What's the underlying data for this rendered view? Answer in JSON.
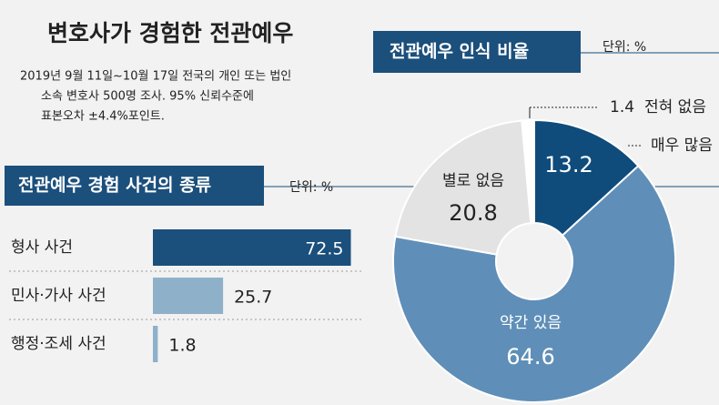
{
  "header": {
    "title": "변호사가 경험한 전관예우",
    "note": [
      "2019년 9월 11일~10월 17일 전국의 개인 또는 법인",
      "소속 변호사 500명 조사. 95% 신뢰수준에",
      "표본오차 ±4.4%포인트."
    ]
  },
  "chart_data": [
    {
      "type": "bar",
      "orientation": "horizontal",
      "title": "전관예우 경험 사건의 종류",
      "unit": "단위: %",
      "categories": [
        "형사 사건",
        "민사·가사 사건",
        "행정·조세 사건"
      ],
      "values": [
        72.5,
        25.7,
        1.8
      ],
      "colors": [
        "#1b4f7c",
        "#8fb0c9",
        "#8fb0c9"
      ]
    },
    {
      "type": "donut",
      "title": "전관예우 인식 비율",
      "unit": "단위: %",
      "categories": [
        "매우 많음",
        "약간 있음",
        "별로 없음",
        "전혀 없음"
      ],
      "values": [
        13.2,
        64.6,
        20.8,
        1.4
      ],
      "colors": [
        "#0f4c7b",
        "#5f8fb8",
        "#e3e3e3",
        "#ffffff"
      ]
    }
  ]
}
